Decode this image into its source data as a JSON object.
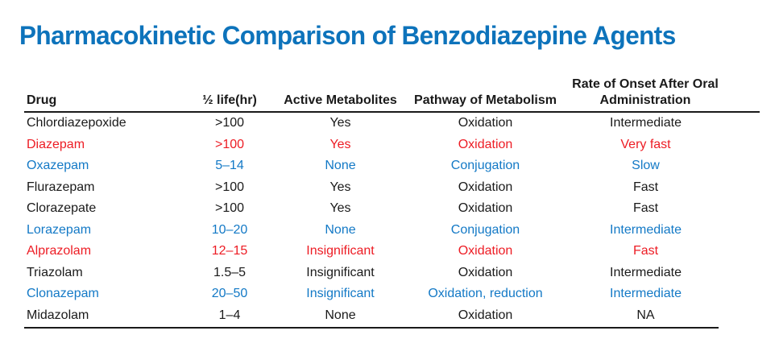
{
  "title": "Pharmacokinetic Comparison of Benzodiazepine Agents",
  "colors": {
    "title_blue": "#0d73bb",
    "highlight_red": "#ed1c24",
    "highlight_blue": "#1379c6",
    "text_black": "#1a1a1a"
  },
  "table": {
    "columns": [
      "Drug",
      "½ life(hr)",
      "Active Metabolites",
      "Pathway of Metabolism",
      "Rate of Onset After Oral Administration"
    ],
    "rows": [
      {
        "drug": "Chlordiazepoxide",
        "half_life": ">100",
        "active_metabolites": "Yes",
        "pathway": "Oxidation",
        "onset": "Intermediate",
        "color": "black"
      },
      {
        "drug": "Diazepam",
        "half_life": ">100",
        "active_metabolites": "Yes",
        "pathway": "Oxidation",
        "onset": "Very fast",
        "color": "red"
      },
      {
        "drug": "Oxazepam",
        "half_life": "5–14",
        "active_metabolites": "None",
        "pathway": "Conjugation",
        "onset": "Slow",
        "color": "blue"
      },
      {
        "drug": "Flurazepam",
        "half_life": ">100",
        "active_metabolites": "Yes",
        "pathway": "Oxidation",
        "onset": "Fast",
        "color": "black"
      },
      {
        "drug": "Clorazepate",
        "half_life": ">100",
        "active_metabolites": "Yes",
        "pathway": "Oxidation",
        "onset": "Fast",
        "color": "black"
      },
      {
        "drug": "Lorazepam",
        "half_life": "10–20",
        "active_metabolites": "None",
        "pathway": "Conjugation",
        "onset": "Intermediate",
        "color": "blue"
      },
      {
        "drug": "Alprazolam",
        "half_life": "12–15",
        "active_metabolites": "Insignificant",
        "pathway": "Oxidation",
        "onset": "Fast",
        "color": "red"
      },
      {
        "drug": "Triazolam",
        "half_life": "1.5–5",
        "active_metabolites": "Insignificant",
        "pathway": "Oxidation",
        "onset": "Intermediate",
        "color": "black"
      },
      {
        "drug": "Clonazepam",
        "half_life": "20–50",
        "active_metabolites": "Insignificant",
        "pathway": "Oxidation, reduction",
        "onset": "Intermediate",
        "color": "blue"
      },
      {
        "drug": "Midazolam",
        "half_life": "1–4",
        "active_metabolites": "None",
        "pathway": "Oxidation",
        "onset": "NA",
        "color": "black"
      }
    ]
  }
}
